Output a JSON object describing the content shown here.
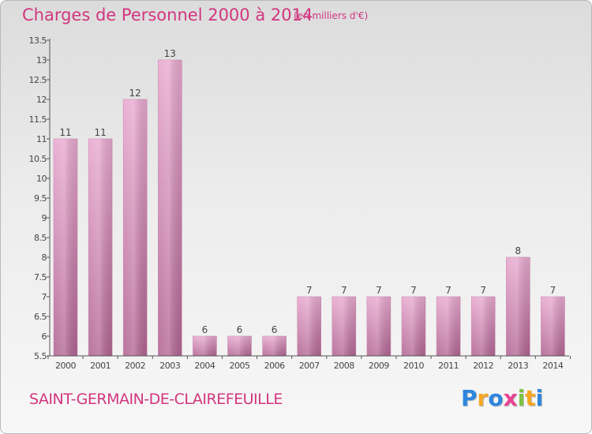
{
  "title": "Charges de Personnel 2000 à 2014",
  "subtitle": "(en milliers d'€)",
  "commune": "SAINT-GERMAIN-DE-CLAIREFEUILLE",
  "logo": {
    "letters": [
      "P",
      "r",
      "o",
      "x",
      "i",
      "t",
      "i"
    ],
    "colors": [
      "#2e86de",
      "#f5a623",
      "#2e86de",
      "#e84393",
      "#7cc242",
      "#f5a623",
      "#2e86de"
    ]
  },
  "colors": {
    "bar_top": "#e8a9cf",
    "bar_bottom": "#b26593",
    "accent": "#d2367e"
  },
  "chart_data": {
    "type": "bar",
    "title": "Charges de Personnel 2000 à 2014",
    "subtitle": "(en milliers d'€)",
    "categories": [
      "2000",
      "2001",
      "2002",
      "2003",
      "2004",
      "2005",
      "2006",
      "2007",
      "2008",
      "2009",
      "2010",
      "2011",
      "2012",
      "2013",
      "2014"
    ],
    "values": [
      11,
      11,
      12,
      13,
      6,
      6,
      6,
      7,
      7,
      7,
      7,
      7,
      7,
      8,
      7
    ],
    "data_labels": [
      "11",
      "11",
      "12",
      "13",
      "6",
      "6",
      "6",
      "7",
      "7",
      "7",
      "7",
      "7",
      "7",
      "8",
      "7"
    ],
    "ylim": [
      5.5,
      13.5
    ],
    "yticks": [
      "5.5",
      "6",
      "6.5",
      "7",
      "7.5",
      "8",
      "8.5",
      "9",
      "9.5",
      "10",
      "10.5",
      "11",
      "11.5",
      "12",
      "12.5",
      "13",
      "13.5"
    ],
    "ytick_values": [
      5.5,
      6,
      6.5,
      7,
      7.5,
      8,
      8.5,
      9,
      9.5,
      10,
      10.5,
      11,
      11.5,
      12,
      12.5,
      13,
      13.5
    ],
    "grid": false,
    "legend": "none"
  }
}
